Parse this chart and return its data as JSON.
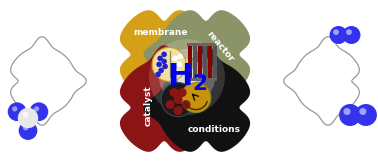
{
  "bg_color": "#ffffff",
  "membrane_color": "#D4A017",
  "reactor_color": "#8B9467",
  "catalyst_color": "#8B1515",
  "conditions_color": "#111111",
  "h2_color": "#0000EE",
  "outline_color": "#999999",
  "membrane_label": "membrane",
  "reactor_label": "reactor",
  "catalyst_label": "catalyst",
  "conditions_label": "conditions",
  "figw": 3.78,
  "figh": 1.63,
  "dpi": 100
}
